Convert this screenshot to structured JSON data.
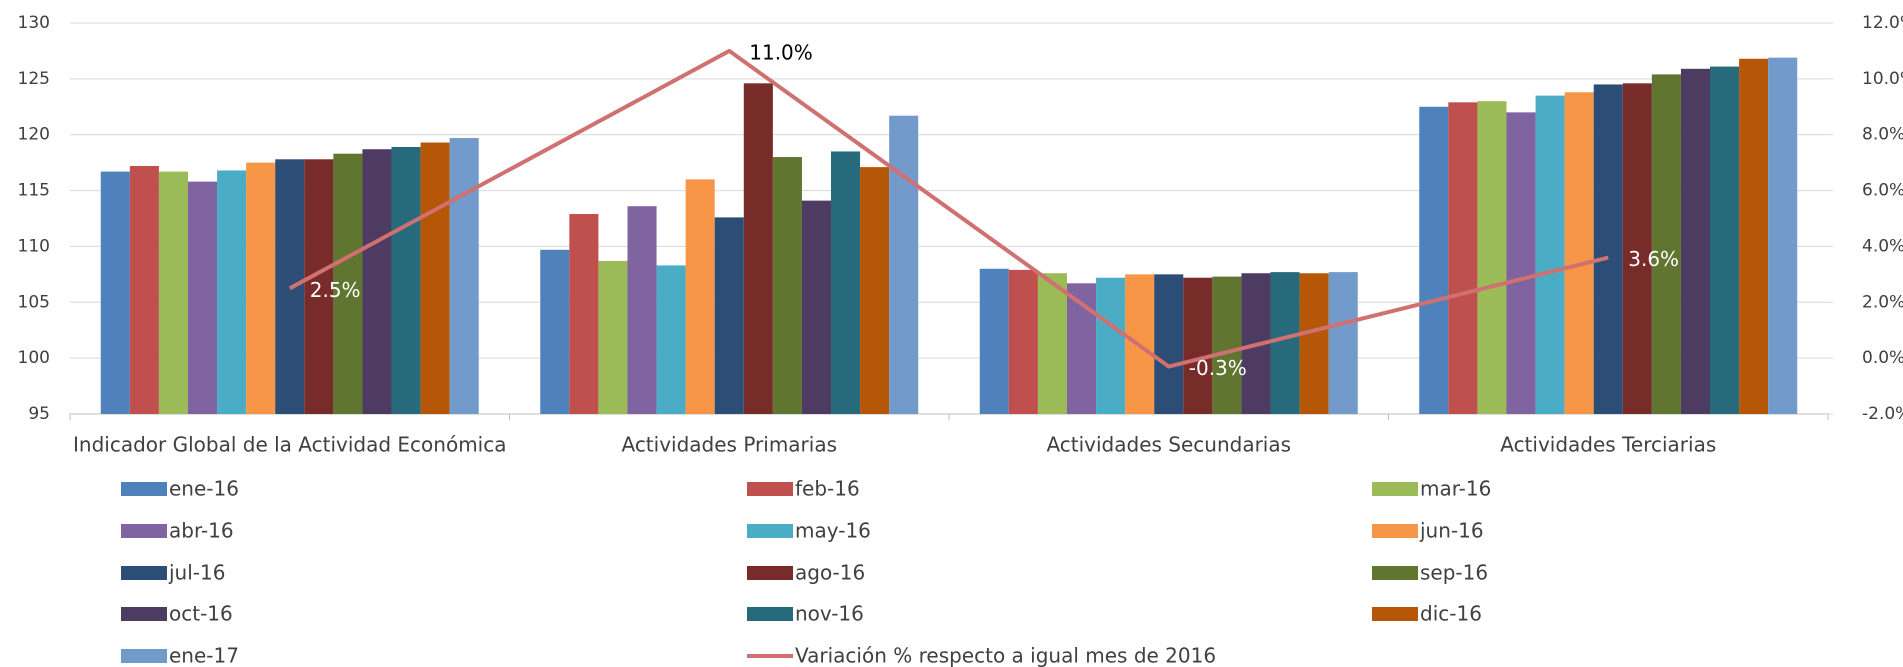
{
  "chart_data": {
    "type": "bar",
    "categories": [
      "Indicador Global de la Actividad Económica",
      "Actividades Primarias",
      "Actividades Secundarias",
      "Actividades Terciarias"
    ],
    "ylim": [
      95,
      130
    ],
    "yticks": [
      95,
      100,
      105,
      110,
      115,
      120,
      125,
      130
    ],
    "y2lim": [
      -2,
      12
    ],
    "y2ticks": [
      {
        "value": -2,
        "label": "-2.0%"
      },
      {
        "value": 0,
        "label": "0.0%"
      },
      {
        "value": 2,
        "label": "2.0%"
      },
      {
        "value": 4,
        "label": "4.0%"
      },
      {
        "value": 6,
        "label": "6.0%"
      },
      {
        "value": 8,
        "label": "8.0%"
      },
      {
        "value": 10,
        "label": "10.0%"
      },
      {
        "value": 12,
        "label": "12.0%"
      }
    ],
    "grid": true,
    "legend": "bottom",
    "series": [
      {
        "name": "ene-16",
        "color": "#4f81bd",
        "values": [
          116.7,
          109.7,
          108.0,
          122.5
        ]
      },
      {
        "name": "feb-16",
        "color": "#c0504d",
        "values": [
          117.2,
          112.9,
          107.9,
          122.9
        ]
      },
      {
        "name": "mar-16",
        "color": "#9bbb59",
        "values": [
          116.7,
          108.7,
          107.6,
          123.0
        ]
      },
      {
        "name": "abr-16",
        "color": "#8064a2",
        "values": [
          115.8,
          113.6,
          106.7,
          122.0
        ]
      },
      {
        "name": "may-16",
        "color": "#4bacc6",
        "values": [
          116.8,
          108.3,
          107.2,
          123.5
        ]
      },
      {
        "name": "jun-16",
        "color": "#f79646",
        "values": [
          117.5,
          116.0,
          107.5,
          123.8
        ]
      },
      {
        "name": "jul-16",
        "color": "#2c4d75",
        "values": [
          117.8,
          112.6,
          107.5,
          124.5
        ]
      },
      {
        "name": "ago-16",
        "color": "#772c2a",
        "values": [
          117.8,
          124.6,
          107.2,
          124.6
        ]
      },
      {
        "name": "sep-16",
        "color": "#5f7530",
        "values": [
          118.3,
          118.0,
          107.3,
          125.4
        ]
      },
      {
        "name": "oct-16",
        "color": "#4d3b62",
        "values": [
          118.7,
          114.1,
          107.6,
          125.9
        ]
      },
      {
        "name": "nov-16",
        "color": "#276a7c",
        "values": [
          118.9,
          118.5,
          107.7,
          126.1
        ]
      },
      {
        "name": "dic-16",
        "color": "#b65708",
        "values": [
          119.3,
          117.1,
          107.6,
          126.8
        ]
      },
      {
        "name": "ene-17",
        "color": "#729aca",
        "values": [
          119.7,
          121.7,
          107.7,
          126.9
        ]
      },
      {
        "name": "Variación % respecto a igual mes de 2016",
        "color": "#d07070",
        "type": "line",
        "axis": "y2",
        "values": [
          2.5,
          11.0,
          -0.3,
          3.6
        ],
        "value_labels": [
          "2.5%",
          "11.0%",
          "-0.3%",
          "3.6%"
        ]
      }
    ]
  }
}
